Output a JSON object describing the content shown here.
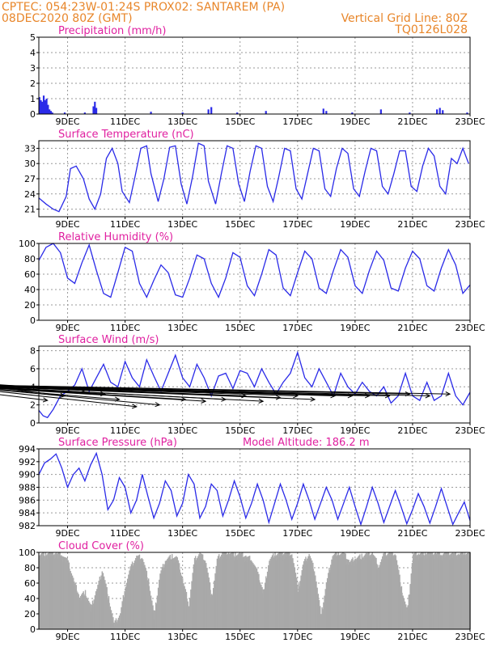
{
  "header": {
    "line1_left": "CPTEC:   054:23W-01:24S   PROX02: SANTAREM (PA)",
    "line2_left": "08DEC2020 80Z (GMT)",
    "line2_right": "Vertical Grid Line: 80Z",
    "line3_right": "TQ0126L028"
  },
  "colors": {
    "header": "#e8862a",
    "title": "#e020a0",
    "series": "#2a2ae8",
    "cloud": "#a9a9a9",
    "grid": "#9a9a9a"
  },
  "x_axis": {
    "range": [
      8,
      23
    ],
    "ticks": [
      {
        "v": 9,
        "label": "9DEC"
      },
      {
        "v": 11,
        "label": "11DEC"
      },
      {
        "v": 13,
        "label": "13DEC"
      },
      {
        "v": 15,
        "label": "15DEC"
      },
      {
        "v": 17,
        "label": "17DEC"
      },
      {
        "v": 19,
        "label": "19DEC"
      },
      {
        "v": 21,
        "label": "21DEC"
      },
      {
        "v": 23,
        "label": "23DEC"
      }
    ]
  },
  "chart_data": [
    {
      "id": "precip",
      "type": "bar",
      "title": "Precipitation (mm/h)",
      "ylim": [
        0,
        5
      ],
      "yticks": [
        0,
        1,
        2,
        3,
        4,
        5
      ],
      "grid": true,
      "bars": [
        [
          8.02,
          1.1
        ],
        [
          8.07,
          0.9
        ],
        [
          8.12,
          0.8
        ],
        [
          8.17,
          1.2
        ],
        [
          8.22,
          0.9
        ],
        [
          8.27,
          1.0
        ],
        [
          8.32,
          0.6
        ],
        [
          8.37,
          0.3
        ],
        [
          8.42,
          0.2
        ],
        [
          8.47,
          0.1
        ],
        [
          8.9,
          0.1
        ],
        [
          9.6,
          0.1
        ],
        [
          9.9,
          0.5
        ],
        [
          9.95,
          0.8
        ],
        [
          10.0,
          0.4
        ],
        [
          11.9,
          0.15
        ],
        [
          13.0,
          0.1
        ],
        [
          13.9,
          0.3
        ],
        [
          14.0,
          0.45
        ],
        [
          14.9,
          0.1
        ],
        [
          15.9,
          0.2
        ],
        [
          17.9,
          0.35
        ],
        [
          18.0,
          0.2
        ],
        [
          18.9,
          0.1
        ],
        [
          19.9,
          0.3
        ],
        [
          20.9,
          0.1
        ],
        [
          21.85,
          0.3
        ],
        [
          21.95,
          0.4
        ],
        [
          22.05,
          0.25
        ],
        [
          22.9,
          0.1
        ]
      ]
    },
    {
      "id": "temp",
      "type": "line",
      "title": "Surface Temperature (nC)",
      "ylim": [
        19.5,
        34.5
      ],
      "yticks": [
        21,
        24,
        27,
        30,
        33
      ],
      "grid": true,
      "x": [
        8.0,
        8.25,
        8.5,
        8.7,
        8.95,
        9.1,
        9.3,
        9.55,
        9.75,
        9.95,
        10.15,
        10.35,
        10.55,
        10.75,
        10.9,
        11.15,
        11.35,
        11.55,
        11.75,
        11.9,
        12.15,
        12.35,
        12.55,
        12.75,
        12.95,
        13.15,
        13.35,
        13.55,
        13.75,
        13.9,
        14.15,
        14.35,
        14.55,
        14.75,
        14.95,
        15.15,
        15.35,
        15.55,
        15.75,
        15.95,
        16.15,
        16.35,
        16.55,
        16.75,
        16.95,
        17.15,
        17.35,
        17.55,
        17.75,
        17.95,
        18.15,
        18.35,
        18.55,
        18.75,
        18.95,
        19.15,
        19.35,
        19.55,
        19.75,
        19.95,
        20.15,
        20.35,
        20.55,
        20.75,
        20.95,
        21.15,
        21.35,
        21.55,
        21.75,
        21.95,
        22.15,
        22.35,
        22.55,
        22.75,
        22.95
      ],
      "values": [
        23.2,
        22.0,
        21.0,
        20.5,
        23.5,
        29.0,
        29.5,
        27.0,
        23.0,
        21.0,
        24.0,
        31.0,
        33.0,
        30.0,
        24.5,
        22.3,
        27.5,
        33.0,
        33.5,
        28.0,
        22.5,
        27.0,
        33.2,
        33.5,
        26.0,
        22.0,
        27.5,
        34.0,
        33.5,
        26.5,
        22.0,
        28.0,
        33.5,
        33.0,
        26.0,
        22.5,
        28.5,
        33.5,
        33.0,
        25.5,
        22.5,
        27.5,
        33.0,
        32.5,
        25.0,
        23.0,
        28.0,
        33.0,
        32.5,
        25.0,
        23.5,
        29.0,
        33.0,
        32.0,
        25.0,
        23.5,
        28.5,
        33.0,
        32.5,
        25.5,
        24.0,
        28.0,
        32.5,
        32.5,
        25.5,
        24.5,
        29.5,
        33.0,
        31.5,
        25.5,
        24.0,
        31.0,
        30.0,
        33.0,
        30.0
      ]
    },
    {
      "id": "rh",
      "type": "line",
      "title": "Relative Humidity (%)",
      "ylim": [
        0,
        100
      ],
      "yticks": [
        0,
        20,
        40,
        60,
        80,
        100
      ],
      "grid": true,
      "x": [
        8.0,
        8.25,
        8.5,
        8.75,
        9.0,
        9.25,
        9.5,
        9.75,
        10.0,
        10.25,
        10.5,
        10.75,
        11.0,
        11.25,
        11.5,
        11.75,
        12.0,
        12.25,
        12.5,
        12.75,
        13.0,
        13.25,
        13.5,
        13.75,
        14.0,
        14.25,
        14.5,
        14.75,
        15.0,
        15.25,
        15.5,
        15.75,
        16.0,
        16.25,
        16.5,
        16.75,
        17.0,
        17.25,
        17.5,
        17.75,
        18.0,
        18.25,
        18.5,
        18.75,
        19.0,
        19.25,
        19.5,
        19.75,
        20.0,
        20.25,
        20.5,
        20.75,
        21.0,
        21.25,
        21.5,
        21.75,
        22.0,
        22.25,
        22.5,
        22.75,
        23.0
      ],
      "values": [
        78,
        95,
        100,
        88,
        55,
        48,
        75,
        98,
        65,
        35,
        30,
        62,
        95,
        90,
        48,
        30,
        52,
        72,
        62,
        33,
        30,
        55,
        85,
        80,
        48,
        30,
        55,
        88,
        82,
        45,
        32,
        60,
        92,
        85,
        42,
        32,
        62,
        90,
        80,
        42,
        35,
        65,
        92,
        82,
        45,
        35,
        65,
        90,
        78,
        42,
        38,
        68,
        90,
        80,
        45,
        38,
        68,
        92,
        72,
        35,
        46
      ]
    },
    {
      "id": "wind",
      "type": "line",
      "title": "Surface Wind (m/s)",
      "ylim": [
        0,
        8.5
      ],
      "yticks": [
        0,
        2,
        4,
        6,
        8
      ],
      "grid": true,
      "x": [
        8.0,
        8.15,
        8.3,
        8.5,
        8.75,
        9.0,
        9.25,
        9.5,
        9.75,
        10.0,
        10.25,
        10.5,
        10.75,
        11.0,
        11.25,
        11.5,
        11.75,
        12.0,
        12.25,
        12.5,
        12.75,
        13.0,
        13.25,
        13.5,
        13.75,
        14.0,
        14.25,
        14.5,
        14.75,
        15.0,
        15.25,
        15.5,
        15.75,
        16.0,
        16.25,
        16.5,
        16.75,
        17.0,
        17.25,
        17.5,
        17.75,
        18.0,
        18.25,
        18.5,
        18.75,
        19.0,
        19.25,
        19.5,
        19.75,
        20.0,
        20.25,
        20.5,
        20.75,
        21.0,
        21.25,
        21.5,
        21.75,
        22.0,
        22.25,
        22.5,
        22.75,
        23.0
      ],
      "values": [
        1.4,
        0.8,
        0.6,
        1.5,
        3.0,
        3.5,
        4.2,
        6.0,
        3.5,
        5.0,
        6.5,
        4.5,
        4.0,
        6.8,
        5.0,
        4.0,
        7.0,
        5.2,
        3.5,
        5.5,
        7.5,
        5.0,
        4.0,
        6.5,
        5.0,
        3.0,
        5.2,
        5.5,
        3.8,
        5.8,
        5.5,
        4.0,
        6.0,
        4.5,
        3.2,
        4.5,
        5.5,
        7.8,
        5.0,
        4.0,
        6.0,
        4.5,
        3.0,
        5.5,
        4.0,
        3.2,
        4.5,
        3.5,
        3.0,
        4.0,
        2.2,
        3.0,
        5.5,
        3.0,
        2.5,
        4.5,
        2.5,
        3.0,
        5.5,
        3.0,
        2.0,
        3.4
      ],
      "vectors": [
        [
          8.3,
          2.5,
          3.6,
          4.3
        ],
        [
          8.9,
          3.0,
          4.3,
          4.8
        ],
        [
          9.6,
          3.6,
          4.0,
          4.8
        ],
        [
          10.3,
          3.2,
          4.8,
          4.3
        ],
        [
          10.8,
          2.6,
          4.3,
          4.3
        ],
        [
          11.4,
          1.8,
          4.3,
          4.3
        ],
        [
          12.2,
          2.0,
          4.4,
          4.3
        ],
        [
          13.1,
          2.6,
          4.3,
          4.3
        ],
        [
          13.8,
          2.4,
          4.0,
          4.3
        ],
        [
          14.5,
          2.6,
          4.3,
          4.3
        ],
        [
          15.2,
          3.0,
          4.6,
          4.3
        ],
        [
          15.8,
          2.4,
          4.3,
          4.3
        ],
        [
          16.4,
          2.8,
          4.2,
          4.3
        ],
        [
          17.0,
          3.0,
          4.0,
          4.3
        ],
        [
          17.6,
          2.6,
          4.0,
          4.3
        ],
        [
          18.3,
          3.0,
          4.2,
          4.3
        ],
        [
          18.9,
          3.0,
          4.0,
          4.3
        ],
        [
          19.5,
          3.0,
          4.3,
          4.3
        ],
        [
          20.2,
          3.0,
          4.0,
          4.3
        ],
        [
          20.9,
          3.2,
          4.3,
          4.3
        ],
        [
          21.6,
          3.0,
          4.0,
          4.3
        ],
        [
          22.3,
          3.2,
          4.3,
          4.3
        ]
      ]
    },
    {
      "id": "pres",
      "type": "line",
      "title": "Surface Pressure (hPa)",
      "annotation": "Model Altitude: 186.2 m",
      "ylim": [
        982,
        994
      ],
      "yticks": [
        982,
        984,
        986,
        988,
        990,
        992,
        994
      ],
      "grid": true,
      "x": [
        8.0,
        8.2,
        8.4,
        8.6,
        8.8,
        9.0,
        9.2,
        9.4,
        9.6,
        9.8,
        10.0,
        10.2,
        10.4,
        10.6,
        10.8,
        11.0,
        11.2,
        11.4,
        11.6,
        11.8,
        12.0,
        12.2,
        12.4,
        12.6,
        12.8,
        13.0,
        13.2,
        13.4,
        13.6,
        13.8,
        14.0,
        14.2,
        14.4,
        14.6,
        14.8,
        15.0,
        15.2,
        15.4,
        15.6,
        15.8,
        16.0,
        16.2,
        16.4,
        16.6,
        16.8,
        17.0,
        17.2,
        17.4,
        17.6,
        17.8,
        18.0,
        18.2,
        18.4,
        18.6,
        18.8,
        19.0,
        19.2,
        19.4,
        19.6,
        19.8,
        20.0,
        20.2,
        20.4,
        20.6,
        20.8,
        21.0,
        21.2,
        21.4,
        21.6,
        21.8,
        22.0,
        22.2,
        22.4,
        22.6,
        22.8,
        23.0
      ],
      "values": [
        990,
        991.8,
        992.4,
        993.2,
        991,
        988,
        990,
        991,
        989,
        991.5,
        993.3,
        990,
        984.5,
        986,
        989.5,
        988,
        984,
        986,
        990,
        986.5,
        983.2,
        985.5,
        989,
        987.5,
        983.5,
        985.5,
        990,
        988.5,
        983.2,
        985,
        988.5,
        987.5,
        983.5,
        986,
        989,
        986.5,
        983.2,
        985.5,
        988.5,
        986,
        982.5,
        985.5,
        988.5,
        986,
        983,
        985.5,
        988.5,
        986,
        983,
        985.5,
        988,
        986,
        983,
        985.5,
        988,
        985,
        982.2,
        985,
        988,
        985.5,
        982.5,
        985,
        987.5,
        985,
        982.3,
        984.5,
        987,
        985,
        982.4,
        985,
        987.8,
        985,
        982.2,
        984,
        985.7,
        982.8
      ]
    },
    {
      "id": "cloud",
      "type": "area",
      "title": "Cloud Cover (%)",
      "ylim": [
        0,
        100
      ],
      "yticks": [
        0,
        20,
        40,
        60,
        80,
        100
      ],
      "grid": true,
      "x": [
        8.0,
        8.2,
        8.4,
        8.6,
        8.8,
        9.0,
        9.2,
        9.4,
        9.6,
        9.8,
        10.0,
        10.2,
        10.4,
        10.6,
        10.8,
        11.0,
        11.2,
        11.4,
        11.6,
        11.8,
        12.0,
        12.2,
        12.4,
        12.6,
        12.8,
        13.0,
        13.2,
        13.4,
        13.6,
        13.8,
        14.0,
        14.2,
        14.4,
        14.6,
        14.8,
        15.0,
        15.2,
        15.4,
        15.6,
        15.8,
        16.0,
        16.2,
        16.4,
        16.6,
        16.8,
        17.0,
        17.2,
        17.4,
        17.6,
        17.8,
        18.0,
        18.2,
        18.4,
        18.6,
        18.8,
        19.0,
        19.2,
        19.4,
        19.6,
        19.8,
        20.0,
        20.2,
        20.4,
        20.6,
        20.8,
        21.0,
        21.2,
        21.4,
        21.6,
        21.8,
        22.0,
        22.2,
        22.4,
        22.6,
        22.8,
        23.0
      ],
      "values": [
        95,
        96,
        97,
        96,
        95,
        85,
        60,
        40,
        45,
        25,
        50,
        75,
        40,
        5,
        15,
        55,
        80,
        92,
        90,
        60,
        15,
        70,
        88,
        92,
        90,
        60,
        30,
        88,
        96,
        85,
        40,
        90,
        97,
        97,
        95,
        95,
        92,
        88,
        70,
        45,
        88,
        95,
        96,
        97,
        95,
        50,
        85,
        95,
        70,
        15,
        60,
        94,
        96,
        95,
        85,
        90,
        92,
        95,
        96,
        80,
        95,
        96,
        95,
        50,
        20,
        95,
        96,
        97,
        97,
        96,
        96,
        97,
        95,
        96,
        97,
        96
      ]
    }
  ]
}
